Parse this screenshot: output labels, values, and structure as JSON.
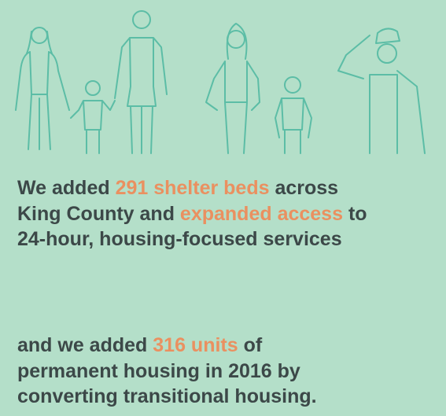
{
  "paragraphs": [
    {
      "lines": [
        [
          {
            "text": "We added "
          },
          {
            "text": "291 shelter beds",
            "highlight": true
          },
          {
            "text": " across"
          }
        ],
        [
          {
            "text": "King County and "
          },
          {
            "text": "expanded access",
            "highlight": true
          },
          {
            "text": " to"
          }
        ],
        [
          {
            "text": "24-hour, housing-focused services"
          }
        ]
      ]
    },
    {
      "lines": [
        [
          {
            "text": "and we added "
          },
          {
            "text": "316 units",
            "highlight": true
          },
          {
            "text": " of"
          }
        ],
        [
          {
            "text": "permanent housing in 2016 by"
          }
        ],
        [
          {
            "text": "converting transitional housing."
          }
        ]
      ]
    }
  ]
}
